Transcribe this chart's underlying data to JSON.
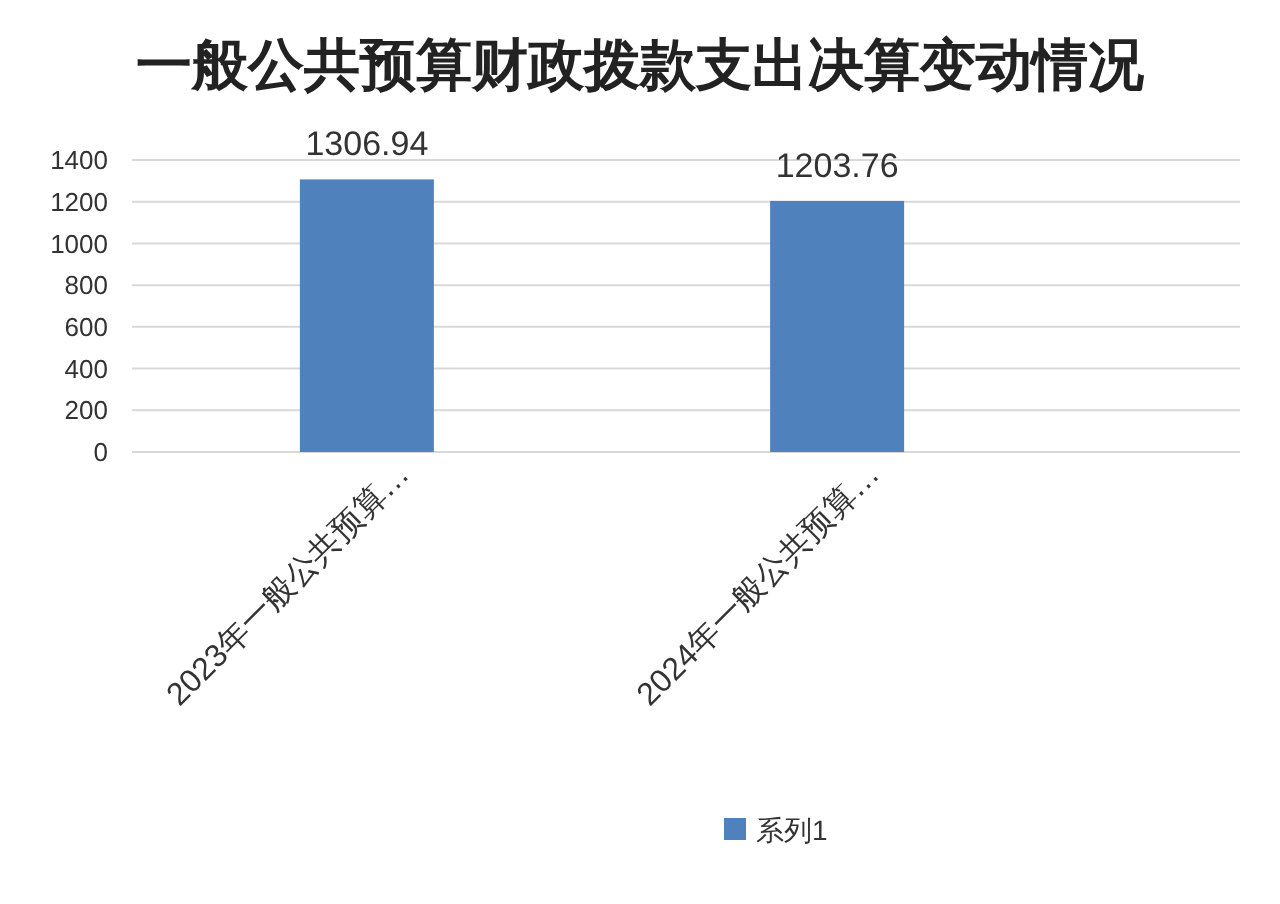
{
  "chart_data": {
    "type": "bar",
    "title": "一般公共预算财政拨款支出决算变动情况",
    "categories": [
      "2023年一般公共预算…",
      "2024年一般公共预算…"
    ],
    "series": [
      {
        "name": "系列1",
        "color": "#4f81bd",
        "values": [
          1306.94,
          1203.76
        ]
      }
    ],
    "ylim": [
      0,
      1400
    ],
    "yticks": [
      0,
      200,
      400,
      600,
      800,
      1000,
      1200,
      1400
    ],
    "grid": "y",
    "legend": "bottom",
    "data_labels": true
  }
}
